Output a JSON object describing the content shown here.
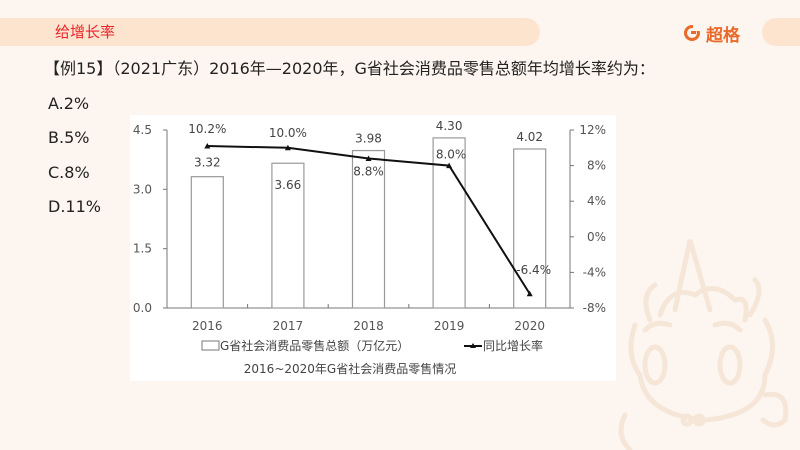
{
  "header": {
    "section_title": "给增长率",
    "brand_name": "超格",
    "brand_icon": "brand-g-icon"
  },
  "question": {
    "text": "【例15】（2021广东）2016年—2020年，G省社会消费品零售总额年均增长率约为：",
    "options": [
      {
        "label": "A.2%"
      },
      {
        "label": "B.5%"
      },
      {
        "label": "C.8%"
      },
      {
        "label": "D.11%"
      }
    ]
  },
  "colors": {
    "section_title": "#e8262b",
    "brand": "#ea6a2a",
    "header_band": "#fde4cf",
    "background": "#fdf6f0"
  },
  "chart_data": {
    "type": "bar+line",
    "title": "2016~2020年G省社会消费品零售情况",
    "categories": [
      "2016",
      "2017",
      "2018",
      "2019",
      "2020"
    ],
    "series": [
      {
        "name": "G省社会消费品零售总额（万亿元）",
        "type": "bar",
        "axis": "left",
        "values": [
          3.32,
          3.66,
          3.98,
          4.3,
          4.02
        ],
        "labels": [
          "3.32",
          "3.66",
          "3.98",
          "4.30",
          "4.02"
        ]
      },
      {
        "name": "同比增长率",
        "type": "line",
        "axis": "right",
        "values": [
          10.2,
          10.0,
          8.8,
          8.0,
          -6.4
        ],
        "labels": [
          "10.2%",
          "10.0%",
          "8.8%",
          "8.0%",
          "-6.4%"
        ]
      }
    ],
    "left_axis": {
      "ticks": [
        "0.0",
        "1.5",
        "3.0",
        "4.5"
      ],
      "ylim": [
        0,
        4.5
      ]
    },
    "right_axis": {
      "ticks": [
        "-8%",
        "-4%",
        "0%",
        "4%",
        "8%",
        "12%"
      ],
      "ylim": [
        -8,
        12
      ]
    },
    "legend_position": "bottom",
    "grid": false
  }
}
